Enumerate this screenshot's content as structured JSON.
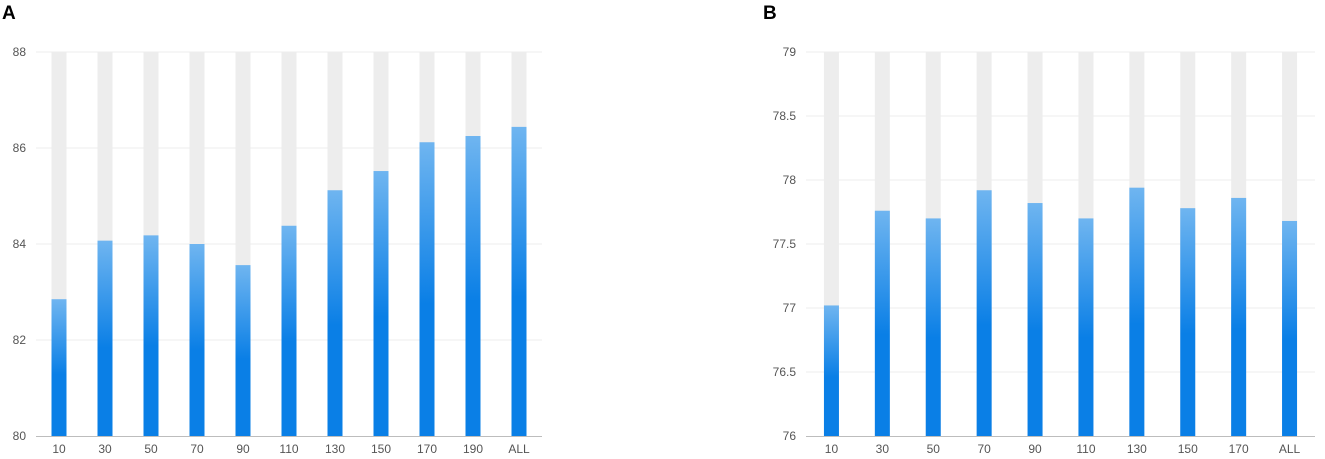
{
  "chart_data": [
    {
      "type": "bar",
      "panel": "A",
      "categories": [
        "10",
        "30",
        "50",
        "70",
        "90",
        "110",
        "130",
        "150",
        "170",
        "190",
        "ALL"
      ],
      "values": [
        82.85,
        84.07,
        84.18,
        84.0,
        83.56,
        84.38,
        85.12,
        85.52,
        86.12,
        86.25,
        86.44
      ],
      "ylim": [
        80,
        88
      ],
      "yticks": [
        "80",
        "82",
        "84",
        "86",
        "88"
      ],
      "ytick_values": [
        80,
        82,
        84,
        86,
        88
      ],
      "bar_color_top": "#6fb5f0",
      "bar_color_bottom": "#0a7fe6",
      "background_bar_color": "#ededed",
      "grid": true
    },
    {
      "type": "bar",
      "panel": "B",
      "categories": [
        "10",
        "30",
        "50",
        "70",
        "90",
        "110",
        "130",
        "150",
        "170",
        "ALL"
      ],
      "values": [
        77.02,
        77.76,
        77.7,
        77.92,
        77.82,
        77.7,
        77.94,
        77.78,
        77.86,
        77.68
      ],
      "ylim": [
        76,
        79
      ],
      "yticks": [
        "76",
        "76.5",
        "77",
        "77.5",
        "78",
        "78.5",
        "79"
      ],
      "ytick_values": [
        76,
        76.5,
        77,
        77.5,
        78,
        78.5,
        79
      ],
      "bar_color_top": "#6fb5f0",
      "bar_color_bottom": "#0a7fe6",
      "background_bar_color": "#ededed",
      "grid": true
    }
  ]
}
